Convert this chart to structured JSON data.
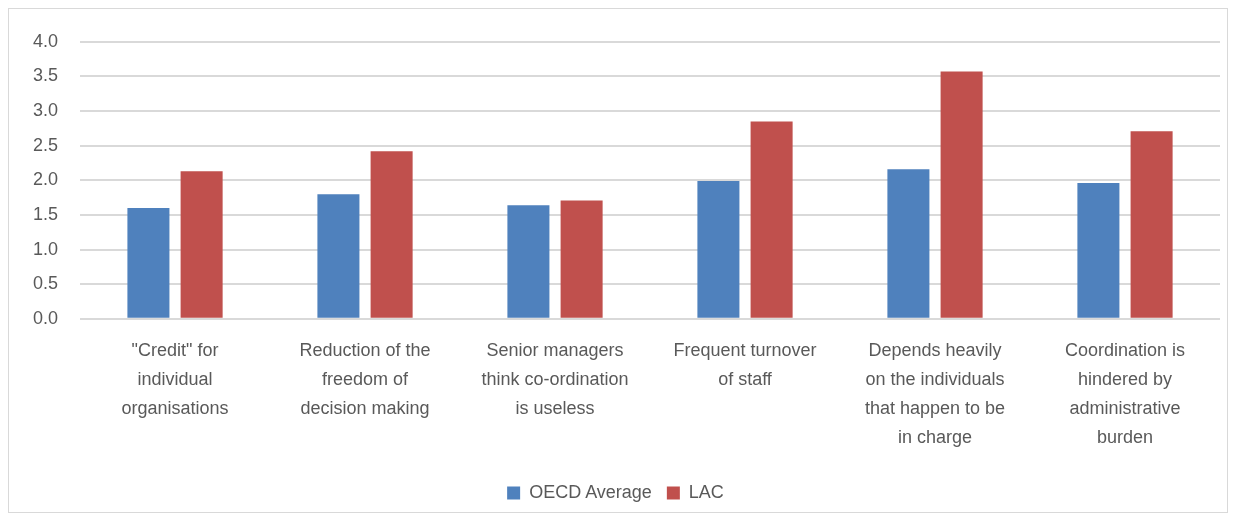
{
  "chart_data": {
    "type": "bar",
    "categories": [
      "\"Credit\" for individual organisations",
      "Reduction of the freedom of decision making",
      "Senior managers think co-ordination is useless",
      "Frequent turnover of staff",
      "Depends heavily on the individuals that happen to be in charge",
      "Coordination is hindered by administrative burden"
    ],
    "series": [
      {
        "name": "OECD Average",
        "color": "#4f81bd",
        "values": [
          1.6,
          1.8,
          1.64,
          1.99,
          2.16,
          1.96
        ]
      },
      {
        "name": "LAC",
        "color": "#c0504d",
        "values": [
          2.13,
          2.42,
          1.71,
          2.85,
          3.57,
          2.71
        ]
      }
    ],
    "ylim": [
      0,
      4
    ],
    "yticks": [
      {
        "value": 0,
        "label": "0.0"
      },
      {
        "value": 0.5,
        "label": "0.5"
      },
      {
        "value": 1,
        "label": "1.0"
      },
      {
        "value": 1.5,
        "label": "1.5"
      },
      {
        "value": 2,
        "label": "2.0"
      },
      {
        "value": 2.5,
        "label": "2.5"
      },
      {
        "value": 3,
        "label": "3.0"
      },
      {
        "value": 3.5,
        "label": "3.5"
      },
      {
        "value": 4,
        "label": "4.0"
      }
    ],
    "grid": "y",
    "legend": "bottom"
  }
}
